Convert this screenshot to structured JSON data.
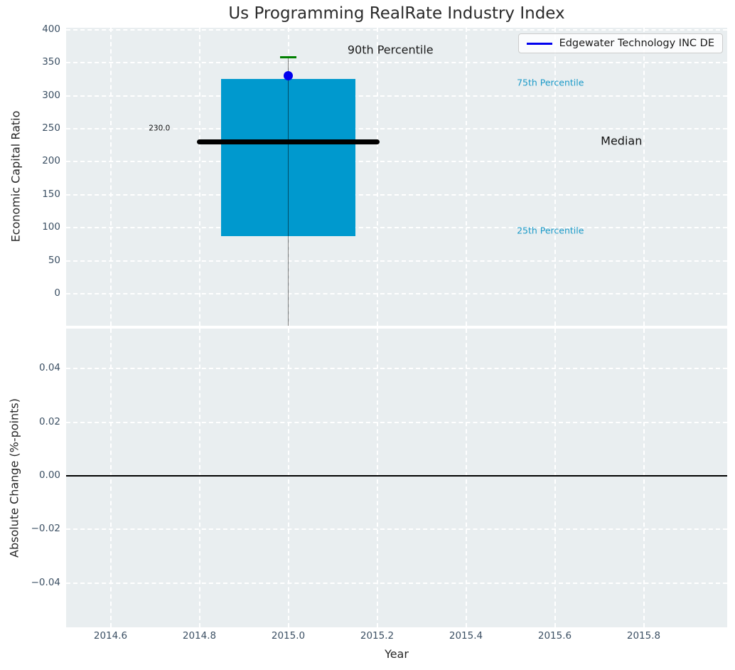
{
  "figure": {
    "background": "#ffffff",
    "panel_background": "#e9eef0",
    "grid_color": "#ffffff",
    "tick_label_color": "#3b4f63",
    "text_color": "#262626"
  },
  "legend": {
    "label": "Edgewater Technology INC DE",
    "line_color": "#0000ee",
    "position": "upper right"
  },
  "chart_data": [
    {
      "type": "boxplot",
      "title": "Us Programming RealRate Industry Index",
      "xlabel": "",
      "ylabel": "Economic Capital Ratio",
      "grid": true,
      "xlim": [
        2014.5,
        2015.988
      ],
      "ylim": [
        -48.5,
        403.2
      ],
      "xticks": [
        {
          "v": 2014.6,
          "label": "2014.6"
        },
        {
          "v": 2014.8,
          "label": "2014.8"
        },
        {
          "v": 2015.0,
          "label": "2015.0"
        },
        {
          "v": 2015.2,
          "label": "2015.2"
        },
        {
          "v": 2015.4,
          "label": "2015.4"
        },
        {
          "v": 2015.6,
          "label": "2015.6"
        },
        {
          "v": 2015.8,
          "label": "2015.8"
        }
      ],
      "yticks": [
        {
          "v": 0,
          "label": "0"
        },
        {
          "v": 50,
          "label": "50"
        },
        {
          "v": 100,
          "label": "100"
        },
        {
          "v": 150,
          "label": "150"
        },
        {
          "v": 200,
          "label": "200"
        },
        {
          "v": 250,
          "label": "250"
        },
        {
          "v": 300,
          "label": "300"
        },
        {
          "v": 350,
          "label": "350"
        },
        {
          "v": 400,
          "label": "400"
        }
      ],
      "box": {
        "x": 2015.0,
        "q25": 87,
        "median": 230.0,
        "q75": 326,
        "p90": 358,
        "box_halfwidth": 0.151,
        "median_halfwidth": 0.205,
        "cap_halfwidth": 0.018,
        "fill_color": "#0099ce",
        "median_color": "#000000",
        "cap_color": "#008000",
        "center_line_color": "rgba(0,0,0,0.5)"
      },
      "company_point": {
        "name": "Edgewater Technology INC DE",
        "x": 2015.0,
        "y": 330,
        "color": "#0000ee"
      },
      "annotations": [
        {
          "text": "90th Percentile",
          "x": 2015.23,
          "y": 370,
          "color": "#1a1a1a",
          "size": 16
        },
        {
          "text": "230.0",
          "x": 2014.71,
          "y": 250,
          "color": "#111111",
          "size": 10.5
        },
        {
          "text": "75th Percentile",
          "x": 2015.59,
          "y": 320,
          "color": "#1b9ac8",
          "size": 12.5
        },
        {
          "text": "Median",
          "x": 2015.75,
          "y": 232,
          "color": "#111111",
          "size": 16
        },
        {
          "text": "25th Percentile",
          "x": 2015.59,
          "y": 96,
          "color": "#1b9ac8",
          "size": 12.5
        }
      ]
    },
    {
      "type": "line",
      "title": "",
      "xlabel": "Year",
      "ylabel": "Absolute Change (%-points)",
      "grid": true,
      "xlim": [
        2014.5,
        2015.988
      ],
      "ylim": [
        -0.0566,
        0.055
      ],
      "xticks": [
        {
          "v": 2014.6,
          "label": "2014.6"
        },
        {
          "v": 2014.8,
          "label": "2014.8"
        },
        {
          "v": 2015.0,
          "label": "2015.0"
        },
        {
          "v": 2015.2,
          "label": "2015.2"
        },
        {
          "v": 2015.4,
          "label": "2015.4"
        },
        {
          "v": 2015.6,
          "label": "2015.6"
        },
        {
          "v": 2015.8,
          "label": "2015.8"
        }
      ],
      "yticks": [
        {
          "v": 0.04,
          "label": "0.04"
        },
        {
          "v": 0.02,
          "label": "0.02"
        },
        {
          "v": 0.0,
          "label": "0.00"
        },
        {
          "v": -0.02,
          "label": "−0.02"
        },
        {
          "v": -0.04,
          "label": "−0.04"
        }
      ],
      "zero_line": 0.0,
      "zero_line_color": "#000000"
    }
  ]
}
